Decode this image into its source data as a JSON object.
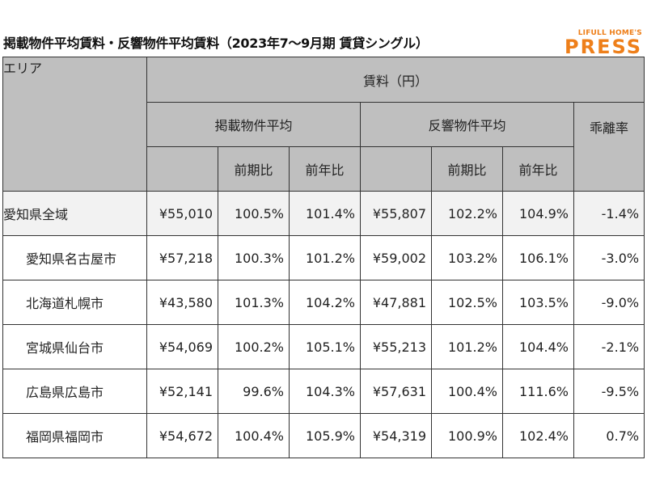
{
  "title": "掲載物件平均賃料・反響物件平均賃料（2023年7～9月期 賃貸シングル）",
  "logo": {
    "top": "LIFULL HOME'S",
    "main": "PRESS"
  },
  "colors": {
    "brand": "#ee7f1a",
    "header_bg": "#bfbfbf",
    "total_row_bg": "#f2f2f2"
  },
  "table": {
    "area_header": "エリア",
    "rent_header": "賃料（円）",
    "listed_header": "掲載物件平均",
    "response_header": "反響物件平均",
    "gap_header": "乖離率",
    "qoq_header": "前期比",
    "yoy_header": "前年比",
    "rows": [
      {
        "area": "愛知県全域",
        "listed": "¥55,010",
        "listed_qoq": "100.5%",
        "listed_yoy": "101.4%",
        "response": "¥55,807",
        "response_qoq": "102.2%",
        "response_yoy": "104.9%",
        "gap": "-1.4%"
      },
      {
        "area": "愛知県名古屋市",
        "listed": "¥57,218",
        "listed_qoq": "100.3%",
        "listed_yoy": "101.2%",
        "response": "¥59,002",
        "response_qoq": "103.2%",
        "response_yoy": "106.1%",
        "gap": "-3.0%"
      },
      {
        "area": "北海道札幌市",
        "listed": "¥43,580",
        "listed_qoq": "101.3%",
        "listed_yoy": "104.2%",
        "response": "¥47,881",
        "response_qoq": "102.5%",
        "response_yoy": "103.5%",
        "gap": "-9.0%"
      },
      {
        "area": "宮城県仙台市",
        "listed": "¥54,069",
        "listed_qoq": "100.2%",
        "listed_yoy": "105.1%",
        "response": "¥55,213",
        "response_qoq": "101.2%",
        "response_yoy": "104.4%",
        "gap": "-2.1%"
      },
      {
        "area": "広島県広島市",
        "listed": "¥52,141",
        "listed_qoq": "99.6%",
        "listed_yoy": "104.3%",
        "response": "¥57,631",
        "response_qoq": "100.4%",
        "response_yoy": "111.6%",
        "gap": "-9.5%"
      },
      {
        "area": "福岡県福岡市",
        "listed": "¥54,672",
        "listed_qoq": "100.4%",
        "listed_yoy": "105.9%",
        "response": "¥54,319",
        "response_qoq": "100.9%",
        "response_yoy": "102.4%",
        "gap": "0.7%"
      }
    ]
  }
}
